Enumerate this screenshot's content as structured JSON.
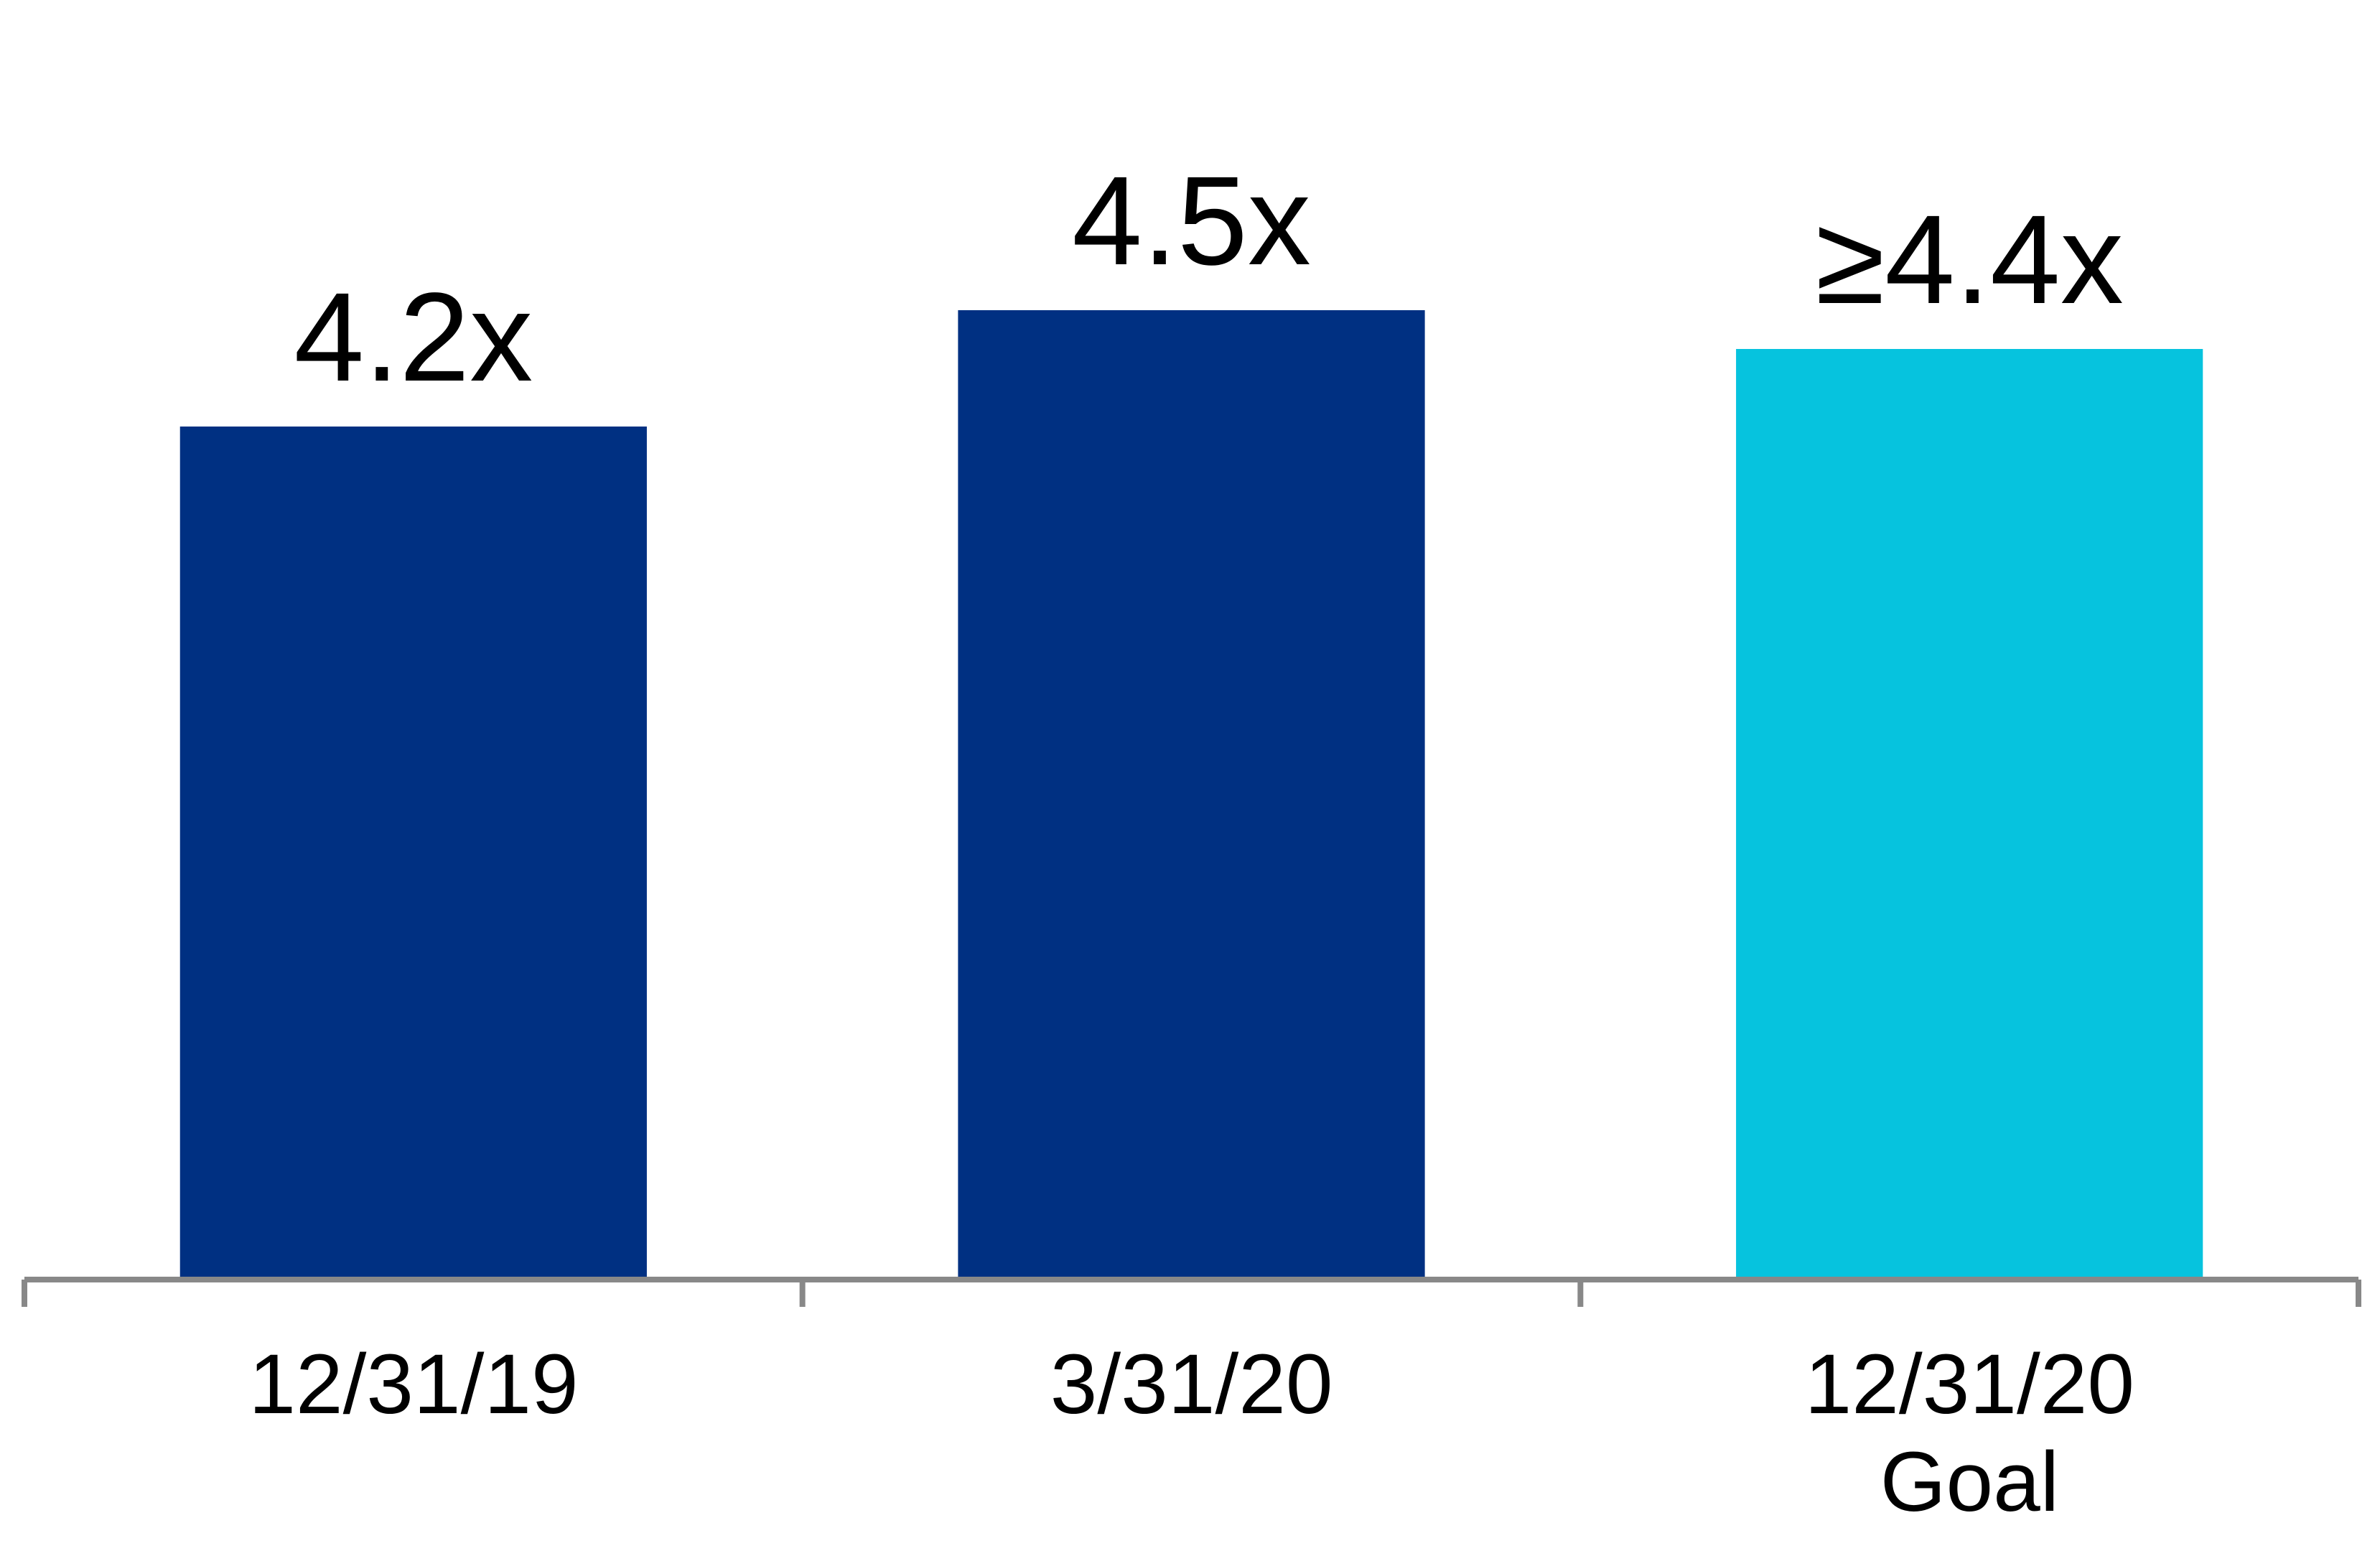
{
  "chart_data": {
    "type": "bar",
    "categories": [
      "12/31/19",
      "3/31/20",
      "12/31/20\nGoal"
    ],
    "values": [
      4.2,
      4.5,
      4.4
    ],
    "value_labels": [
      "4.2x",
      "4.5x",
      "≥4.4x"
    ],
    "colors": [
      "#003082",
      "#003082",
      "#06c3de"
    ],
    "ylim": [
      2,
      5.3
    ]
  }
}
